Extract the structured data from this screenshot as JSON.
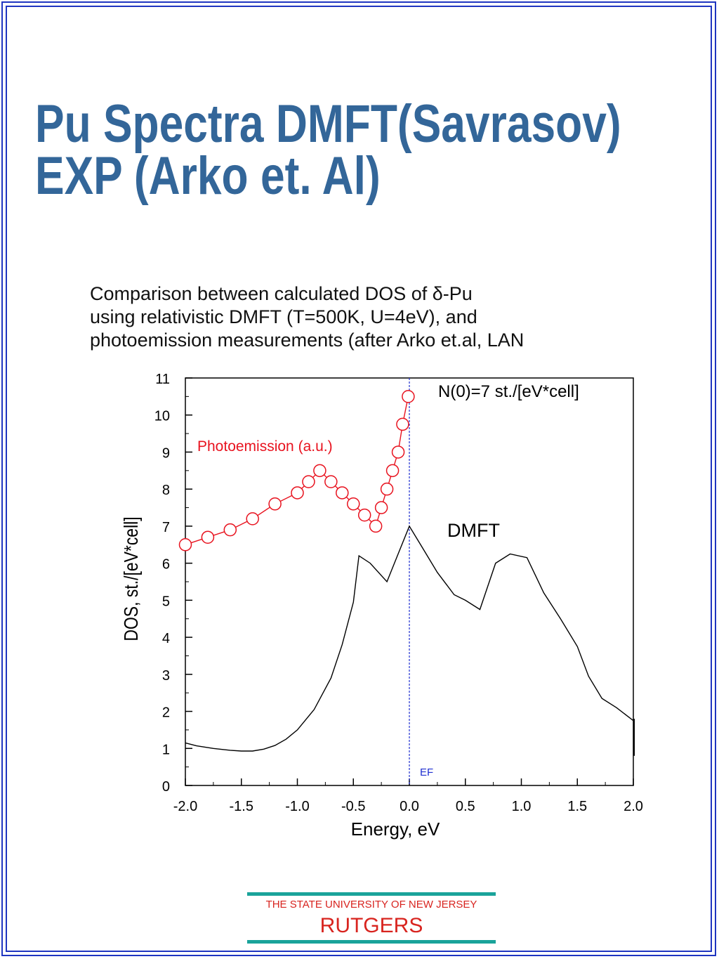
{
  "slide": {
    "title_line1": "Pu Spectra DMFT(Savrasov)",
    "title_line2": "EXP (Arko et. Al)",
    "caption_line1": "Comparison between calculated DOS of δ-Pu",
    "caption_line2": "using relativistic DMFT (T=500K, U=4eV), and",
    "caption_line3": "photoemission measurements (after Arko et.al, LAN",
    "colors": {
      "title": "#336699",
      "frame": "#1f35c0",
      "logo_text": "#d8241f",
      "logo_bar": "#1aa39a"
    }
  },
  "logo": {
    "university": "THE STATE UNIVERSITY OF NEW JERSEY",
    "name": "RUTGERS"
  },
  "chart_data": {
    "type": "line",
    "xlabel": "Energy, eV",
    "ylabel": "DOS, st./[eV*cell]",
    "xlim": [
      -2.0,
      2.0
    ],
    "ylim": [
      0,
      11
    ],
    "xticks": [
      -2.0,
      -1.5,
      -1.0,
      -0.5,
      0.0,
      0.5,
      1.0,
      1.5,
      2.0
    ],
    "xtick_labels": [
      "-2.0",
      "-1.5",
      "-1.0",
      "-0.5",
      "0.0",
      "0.5",
      "1.0",
      "1.5",
      "2.0"
    ],
    "yticks": [
      0,
      1,
      2,
      3,
      4,
      5,
      6,
      7,
      8,
      9,
      10,
      11
    ],
    "ytick_labels": [
      "0",
      "1",
      "2",
      "3",
      "4",
      "5",
      "6",
      "7",
      "8",
      "9",
      "10",
      "11"
    ],
    "grid": false,
    "vline": {
      "x": 0.0,
      "label": "EF",
      "color": "#1f2fd0"
    },
    "annotation": "N(0)=7 st./[eV*cell]",
    "series": [
      {
        "name": "Photoemission (a.u.)",
        "color": "#e8131f",
        "marker": "circle",
        "x": [
          -2.0,
          -1.8,
          -1.6,
          -1.4,
          -1.2,
          -1.0,
          -0.9,
          -0.8,
          -0.7,
          -0.6,
          -0.5,
          -0.4,
          -0.3,
          -0.25,
          -0.2,
          -0.15,
          -0.1,
          -0.06,
          -0.01
        ],
        "y": [
          6.5,
          6.7,
          6.9,
          7.2,
          7.6,
          7.9,
          8.2,
          8.5,
          8.2,
          7.9,
          7.6,
          7.3,
          7.0,
          7.5,
          8.0,
          8.5,
          9.0,
          9.75,
          10.5
        ]
      },
      {
        "name": "DMFT",
        "color": "#000000",
        "marker": "none",
        "x": [
          -2.0,
          -1.9,
          -1.75,
          -1.6,
          -1.5,
          -1.4,
          -1.3,
          -1.2,
          -1.1,
          -1.0,
          -0.85,
          -0.7,
          -0.6,
          -0.5,
          -0.45,
          -0.35,
          -0.2,
          -0.1,
          0.0,
          0.1,
          0.25,
          0.4,
          0.5,
          0.63,
          0.77,
          0.9,
          1.05,
          1.2,
          1.35,
          1.5,
          1.6,
          1.72,
          1.85,
          2.0
        ],
        "y": [
          1.15,
          1.07,
          1.0,
          0.95,
          0.93,
          0.93,
          0.98,
          1.08,
          1.25,
          1.5,
          2.05,
          2.9,
          3.8,
          4.95,
          6.2,
          6.0,
          5.5,
          6.25,
          7.0,
          6.5,
          5.75,
          5.15,
          5.0,
          4.75,
          6.0,
          6.25,
          6.15,
          5.2,
          4.5,
          3.75,
          2.95,
          2.35,
          2.1,
          1.75
        ]
      }
    ]
  }
}
